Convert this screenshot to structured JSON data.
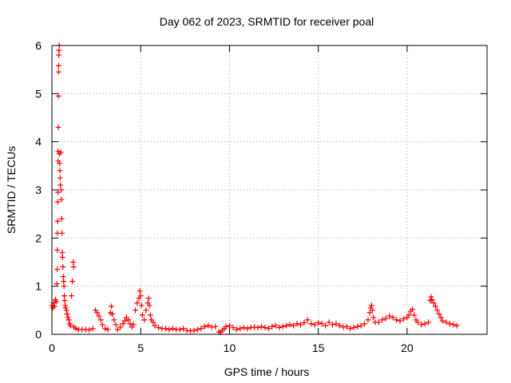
{
  "chart_data": {
    "type": "scatter",
    "title": "Day 062 of 2023, SRMTID for receiver poal",
    "xlabel": "GPS time / hours",
    "ylabel": "SRMTID / TECUs",
    "xlim": [
      0,
      24.5
    ],
    "ylim": [
      0,
      6
    ],
    "xticks": [
      0,
      5,
      10,
      15,
      20
    ],
    "yticks": [
      0,
      1,
      2,
      3,
      4,
      5,
      6
    ],
    "grid": true,
    "marker": "+",
    "marker_color": "#ff0000",
    "series": [
      {
        "name": "SRMTID",
        "points": [
          [
            0.0,
            0.6
          ],
          [
            0.05,
            0.55
          ],
          [
            0.1,
            0.65
          ],
          [
            0.15,
            0.58
          ],
          [
            0.2,
            0.72
          ],
          [
            0.25,
            0.68
          ],
          [
            0.28,
            1.05
          ],
          [
            0.3,
            1.35
          ],
          [
            0.3,
            1.75
          ],
          [
            0.31,
            2.1
          ],
          [
            0.32,
            2.35
          ],
          [
            0.33,
            2.75
          ],
          [
            0.34,
            2.95
          ],
          [
            0.35,
            3.6
          ],
          [
            0.35,
            3.8
          ],
          [
            0.36,
            4.3
          ],
          [
            0.37,
            4.95
          ],
          [
            0.38,
            5.45
          ],
          [
            0.38,
            5.58
          ],
          [
            0.39,
            5.8
          ],
          [
            0.4,
            5.9
          ],
          [
            0.41,
            6.0
          ],
          [
            0.42,
            3.75
          ],
          [
            0.44,
            3.55
          ],
          [
            0.45,
            3.4
          ],
          [
            0.46,
            3.25
          ],
          [
            0.48,
            3.1
          ],
          [
            0.5,
            3.78
          ],
          [
            0.52,
            3.0
          ],
          [
            0.54,
            2.8
          ],
          [
            0.55,
            2.4
          ],
          [
            0.57,
            2.1
          ],
          [
            0.58,
            1.7
          ],
          [
            0.6,
            1.6
          ],
          [
            0.62,
            1.4
          ],
          [
            0.64,
            1.2
          ],
          [
            0.66,
            1.1
          ],
          [
            0.68,
            1.0
          ],
          [
            0.7,
            0.8
          ],
          [
            0.72,
            0.7
          ],
          [
            0.75,
            0.6
          ],
          [
            0.78,
            0.55
          ],
          [
            0.82,
            0.5
          ],
          [
            0.86,
            0.42
          ],
          [
            0.9,
            0.35
          ],
          [
            0.95,
            0.3
          ],
          [
            1.0,
            0.22
          ],
          [
            1.05,
            0.18
          ],
          [
            1.1,
            0.8
          ],
          [
            1.15,
            1.1
          ],
          [
            1.2,
            1.5
          ],
          [
            1.22,
            1.4
          ],
          [
            1.25,
            0.15
          ],
          [
            1.35,
            0.12
          ],
          [
            1.5,
            0.1
          ],
          [
            1.7,
            0.1
          ],
          [
            1.9,
            0.1
          ],
          [
            2.1,
            0.09
          ],
          [
            2.3,
            0.12
          ],
          [
            2.45,
            0.5
          ],
          [
            2.55,
            0.45
          ],
          [
            2.65,
            0.38
          ],
          [
            2.75,
            0.3
          ],
          [
            2.85,
            0.2
          ],
          [
            3.0,
            0.12
          ],
          [
            3.15,
            0.1
          ],
          [
            3.3,
            0.45
          ],
          [
            3.35,
            0.58
          ],
          [
            3.4,
            0.42
          ],
          [
            3.5,
            0.3
          ],
          [
            3.6,
            0.2
          ],
          [
            3.7,
            0.1
          ],
          [
            3.85,
            0.15
          ],
          [
            4.0,
            0.22
          ],
          [
            4.1,
            0.28
          ],
          [
            4.2,
            0.35
          ],
          [
            4.3,
            0.3
          ],
          [
            4.4,
            0.22
          ],
          [
            4.5,
            0.15
          ],
          [
            4.6,
            0.2
          ],
          [
            4.7,
            0.5
          ],
          [
            4.8,
            0.65
          ],
          [
            4.9,
            0.75
          ],
          [
            4.95,
            0.9
          ],
          [
            5.0,
            0.8
          ],
          [
            5.05,
            0.6
          ],
          [
            5.1,
            0.4
          ],
          [
            5.2,
            0.3
          ],
          [
            5.3,
            0.5
          ],
          [
            5.4,
            0.65
          ],
          [
            5.45,
            0.75
          ],
          [
            5.5,
            0.6
          ],
          [
            5.55,
            0.4
          ],
          [
            5.6,
            0.3
          ],
          [
            5.7,
            0.25
          ],
          [
            5.8,
            0.18
          ],
          [
            6.0,
            0.14
          ],
          [
            6.2,
            0.12
          ],
          [
            6.4,
            0.12
          ],
          [
            6.6,
            0.1
          ],
          [
            6.8,
            0.12
          ],
          [
            7.0,
            0.1
          ],
          [
            7.2,
            0.1
          ],
          [
            7.4,
            0.12
          ],
          [
            7.6,
            0.08
          ],
          [
            7.8,
            0.07
          ],
          [
            8.0,
            0.08
          ],
          [
            8.2,
            0.1
          ],
          [
            8.4,
            0.12
          ],
          [
            8.6,
            0.16
          ],
          [
            8.8,
            0.18
          ],
          [
            9.0,
            0.15
          ],
          [
            9.2,
            0.16
          ],
          [
            9.4,
            0.05
          ],
          [
            9.5,
            0.04
          ],
          [
            9.6,
            0.08
          ],
          [
            9.7,
            0.12
          ],
          [
            9.8,
            0.16
          ],
          [
            10.0,
            0.18
          ],
          [
            10.2,
            0.14
          ],
          [
            10.4,
            0.1
          ],
          [
            10.6,
            0.12
          ],
          [
            10.8,
            0.14
          ],
          [
            11.0,
            0.12
          ],
          [
            11.2,
            0.14
          ],
          [
            11.4,
            0.15
          ],
          [
            11.6,
            0.14
          ],
          [
            11.8,
            0.16
          ],
          [
            12.0,
            0.14
          ],
          [
            12.2,
            0.12
          ],
          [
            12.4,
            0.16
          ],
          [
            12.6,
            0.18
          ],
          [
            12.8,
            0.14
          ],
          [
            13.0,
            0.16
          ],
          [
            13.2,
            0.18
          ],
          [
            13.4,
            0.2
          ],
          [
            13.6,
            0.18
          ],
          [
            13.8,
            0.22
          ],
          [
            14.0,
            0.2
          ],
          [
            14.2,
            0.24
          ],
          [
            14.4,
            0.3
          ],
          [
            14.6,
            0.22
          ],
          [
            14.8,
            0.2
          ],
          [
            15.0,
            0.24
          ],
          [
            15.2,
            0.22
          ],
          [
            15.4,
            0.18
          ],
          [
            15.6,
            0.25
          ],
          [
            15.8,
            0.2
          ],
          [
            16.0,
            0.22
          ],
          [
            16.2,
            0.18
          ],
          [
            16.4,
            0.15
          ],
          [
            16.6,
            0.16
          ],
          [
            16.8,
            0.12
          ],
          [
            17.0,
            0.14
          ],
          [
            17.2,
            0.16
          ],
          [
            17.4,
            0.18
          ],
          [
            17.6,
            0.22
          ],
          [
            17.8,
            0.3
          ],
          [
            17.9,
            0.45
          ],
          [
            17.95,
            0.55
          ],
          [
            18.0,
            0.6
          ],
          [
            18.05,
            0.5
          ],
          [
            18.1,
            0.35
          ],
          [
            18.2,
            0.25
          ],
          [
            18.4,
            0.25
          ],
          [
            18.6,
            0.3
          ],
          [
            18.8,
            0.33
          ],
          [
            19.0,
            0.38
          ],
          [
            19.2,
            0.35
          ],
          [
            19.4,
            0.3
          ],
          [
            19.6,
            0.28
          ],
          [
            19.8,
            0.32
          ],
          [
            20.0,
            0.35
          ],
          [
            20.1,
            0.4
          ],
          [
            20.2,
            0.48
          ],
          [
            20.3,
            0.52
          ],
          [
            20.4,
            0.4
          ],
          [
            20.5,
            0.3
          ],
          [
            20.6,
            0.25
          ],
          [
            20.8,
            0.2
          ],
          [
            21.0,
            0.22
          ],
          [
            21.2,
            0.25
          ],
          [
            21.3,
            0.7
          ],
          [
            21.35,
            0.78
          ],
          [
            21.4,
            0.72
          ],
          [
            21.5,
            0.65
          ],
          [
            21.6,
            0.58
          ],
          [
            21.7,
            0.5
          ],
          [
            21.8,
            0.42
          ],
          [
            21.9,
            0.35
          ],
          [
            22.0,
            0.28
          ],
          [
            22.2,
            0.25
          ],
          [
            22.4,
            0.22
          ],
          [
            22.6,
            0.2
          ],
          [
            22.8,
            0.18
          ]
        ]
      }
    ]
  }
}
